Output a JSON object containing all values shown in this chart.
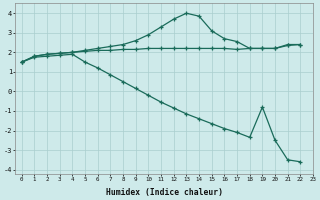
{
  "xlabel": "Humidex (Indice chaleur)",
  "background_color": "#ceeaea",
  "grid_color": "#aacece",
  "line_color": "#1a6b5a",
  "xlim": [
    -0.5,
    23
  ],
  "ylim": [
    -4.2,
    4.5
  ],
  "x_ticks": [
    0,
    1,
    2,
    3,
    4,
    5,
    6,
    7,
    8,
    9,
    10,
    11,
    12,
    13,
    14,
    15,
    16,
    17,
    18,
    19,
    20,
    21,
    22,
    23
  ],
  "y_ticks": [
    -4,
    -3,
    -2,
    -1,
    0,
    1,
    2,
    3,
    4
  ],
  "series1_x": [
    0,
    1,
    2,
    3,
    4,
    5,
    6,
    7,
    8,
    9,
    10,
    11,
    12,
    13,
    14,
    15,
    16,
    17,
    18,
    19,
    20,
    21,
    22
  ],
  "series1_y": [
    1.5,
    1.8,
    1.9,
    1.95,
    2.0,
    2.05,
    2.1,
    2.1,
    2.15,
    2.15,
    2.2,
    2.2,
    2.2,
    2.2,
    2.2,
    2.2,
    2.2,
    2.15,
    2.2,
    2.2,
    2.2,
    2.35,
    2.4
  ],
  "series2_x": [
    0,
    1,
    2,
    3,
    4,
    5,
    6,
    7,
    8,
    9,
    10,
    11,
    12,
    13,
    14,
    15,
    16,
    17,
    18,
    19,
    20,
    21,
    22
  ],
  "series2_y": [
    1.5,
    1.8,
    1.9,
    1.95,
    2.0,
    2.1,
    2.2,
    2.3,
    2.4,
    2.6,
    2.9,
    3.3,
    3.7,
    4.0,
    3.85,
    3.1,
    2.7,
    2.55,
    2.2,
    2.2,
    2.2,
    2.4,
    2.4
  ],
  "series3_x": [
    0,
    1,
    2,
    3,
    4,
    5,
    6,
    7,
    8,
    9,
    10,
    11,
    12,
    13,
    14,
    15,
    16,
    17,
    18,
    19,
    20,
    21,
    22
  ],
  "series3_y": [
    1.5,
    1.75,
    1.8,
    1.85,
    1.9,
    1.5,
    1.2,
    0.85,
    0.5,
    0.15,
    -0.2,
    -0.55,
    -0.85,
    -1.15,
    -1.4,
    -1.65,
    -1.9,
    -2.1,
    -2.35,
    -0.8,
    -2.5,
    -3.5,
    -3.6
  ]
}
